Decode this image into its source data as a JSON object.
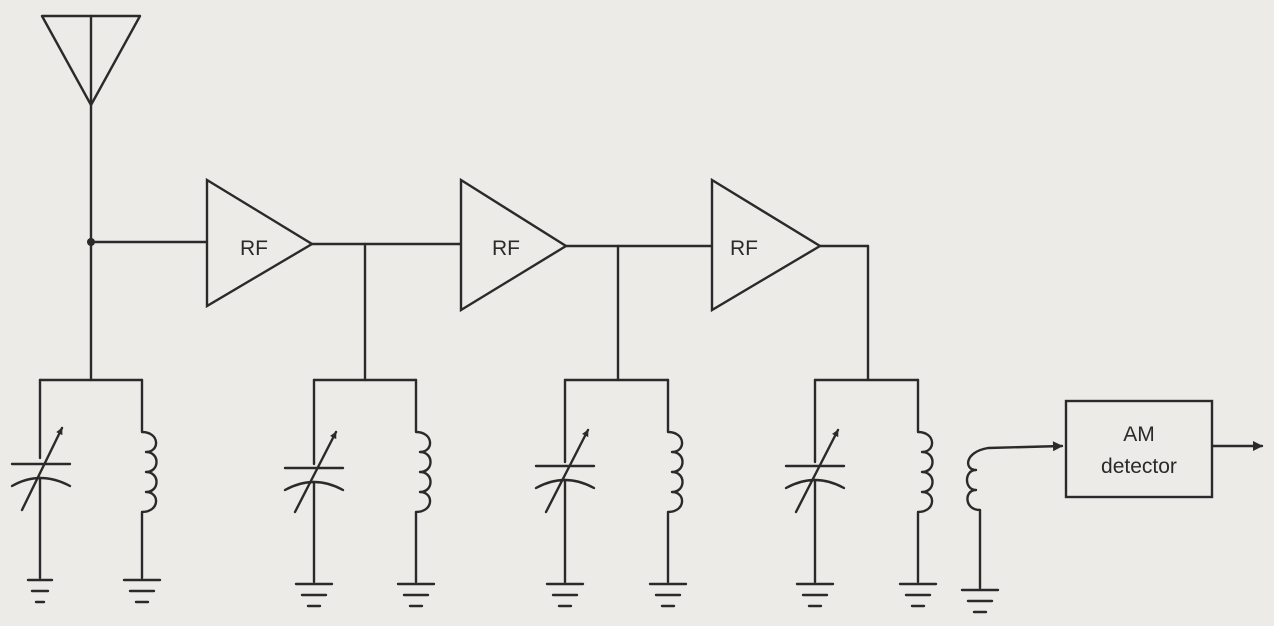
{
  "amplifiers": [
    {
      "label": "RF"
    },
    {
      "label": "RF"
    },
    {
      "label": "RF"
    }
  ],
  "detector": {
    "line1": "AM",
    "line2": "detector"
  },
  "colors": {
    "ink": "#2a2a2a",
    "paper": "#ecebe8"
  }
}
